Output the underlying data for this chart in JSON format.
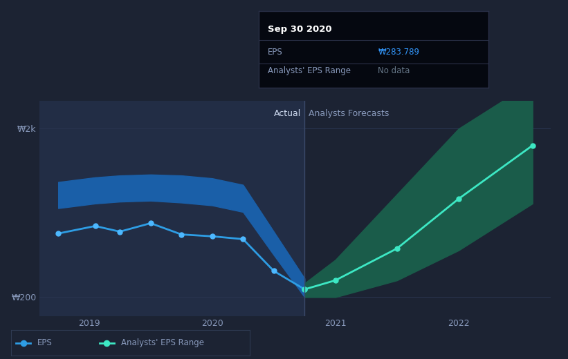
{
  "bg_color": "#1c2333",
  "plot_bg_color": "#1c2333",
  "ylabel_top": "₩2k",
  "ylabel_bottom": "₩200",
  "x_ticks": [
    2019,
    2020,
    2021,
    2022
  ],
  "x_labels": [
    "2019",
    "2020",
    "2021",
    "2022"
  ],
  "actual_label": "Actual",
  "forecast_label": "Analysts Forecasts",
  "divider_x": 2020.75,
  "actual_eps_x": [
    2018.75,
    2019.05,
    2019.25,
    2019.5,
    2019.75,
    2020.0,
    2020.25,
    2020.5,
    2020.75
  ],
  "actual_eps_y": [
    880,
    960,
    900,
    990,
    870,
    850,
    820,
    480,
    283.789
  ],
  "actual_band_upper": [
    1430,
    1480,
    1500,
    1510,
    1500,
    1470,
    1400,
    900,
    400
  ],
  "actual_band_lower": [
    1150,
    1200,
    1220,
    1230,
    1210,
    1180,
    1110,
    650,
    200
  ],
  "forecast_eps_x": [
    2020.75,
    2021.0,
    2021.5,
    2022.0,
    2022.6
  ],
  "forecast_eps_y": [
    283.789,
    380,
    720,
    1250,
    1820
  ],
  "forecast_band_upper": [
    350,
    600,
    1300,
    2000,
    2500
  ],
  "forecast_band_lower": [
    200,
    200,
    380,
    700,
    1200
  ],
  "ylim": [
    0,
    2300
  ],
  "xlim": [
    2018.6,
    2022.75
  ],
  "ytick_vals": [
    200,
    2000
  ],
  "eps_line_color": "#2e9de4",
  "eps_dot_color": "#4db8ff",
  "actual_band_color": "#1a5fa8",
  "forecast_line_color": "#3de8c4",
  "forecast_dot_color": "#3de8c4",
  "forecast_band_color": "#1a5c4a",
  "actual_bg_color": "#222d45",
  "grid_color": "#2a3550",
  "text_color": "#8899bb",
  "actual_text_color": "#ccd8ee",
  "tooltip_bg": "#050810",
  "tooltip_border": "#2a3048",
  "tooltip_title": "Sep 30 2020",
  "tooltip_eps_label": "EPS",
  "tooltip_eps_value": "₩283.789",
  "tooltip_range_label": "Analysts' EPS Range",
  "tooltip_range_value": "No data",
  "tooltip_eps_color": "#3399ff",
  "tooltip_range_color": "#667788",
  "legend_eps_label": "EPS",
  "legend_range_label": "Analysts' EPS Range",
  "legend_eps_color": "#2e9de4",
  "legend_range_color": "#3de8c4"
}
